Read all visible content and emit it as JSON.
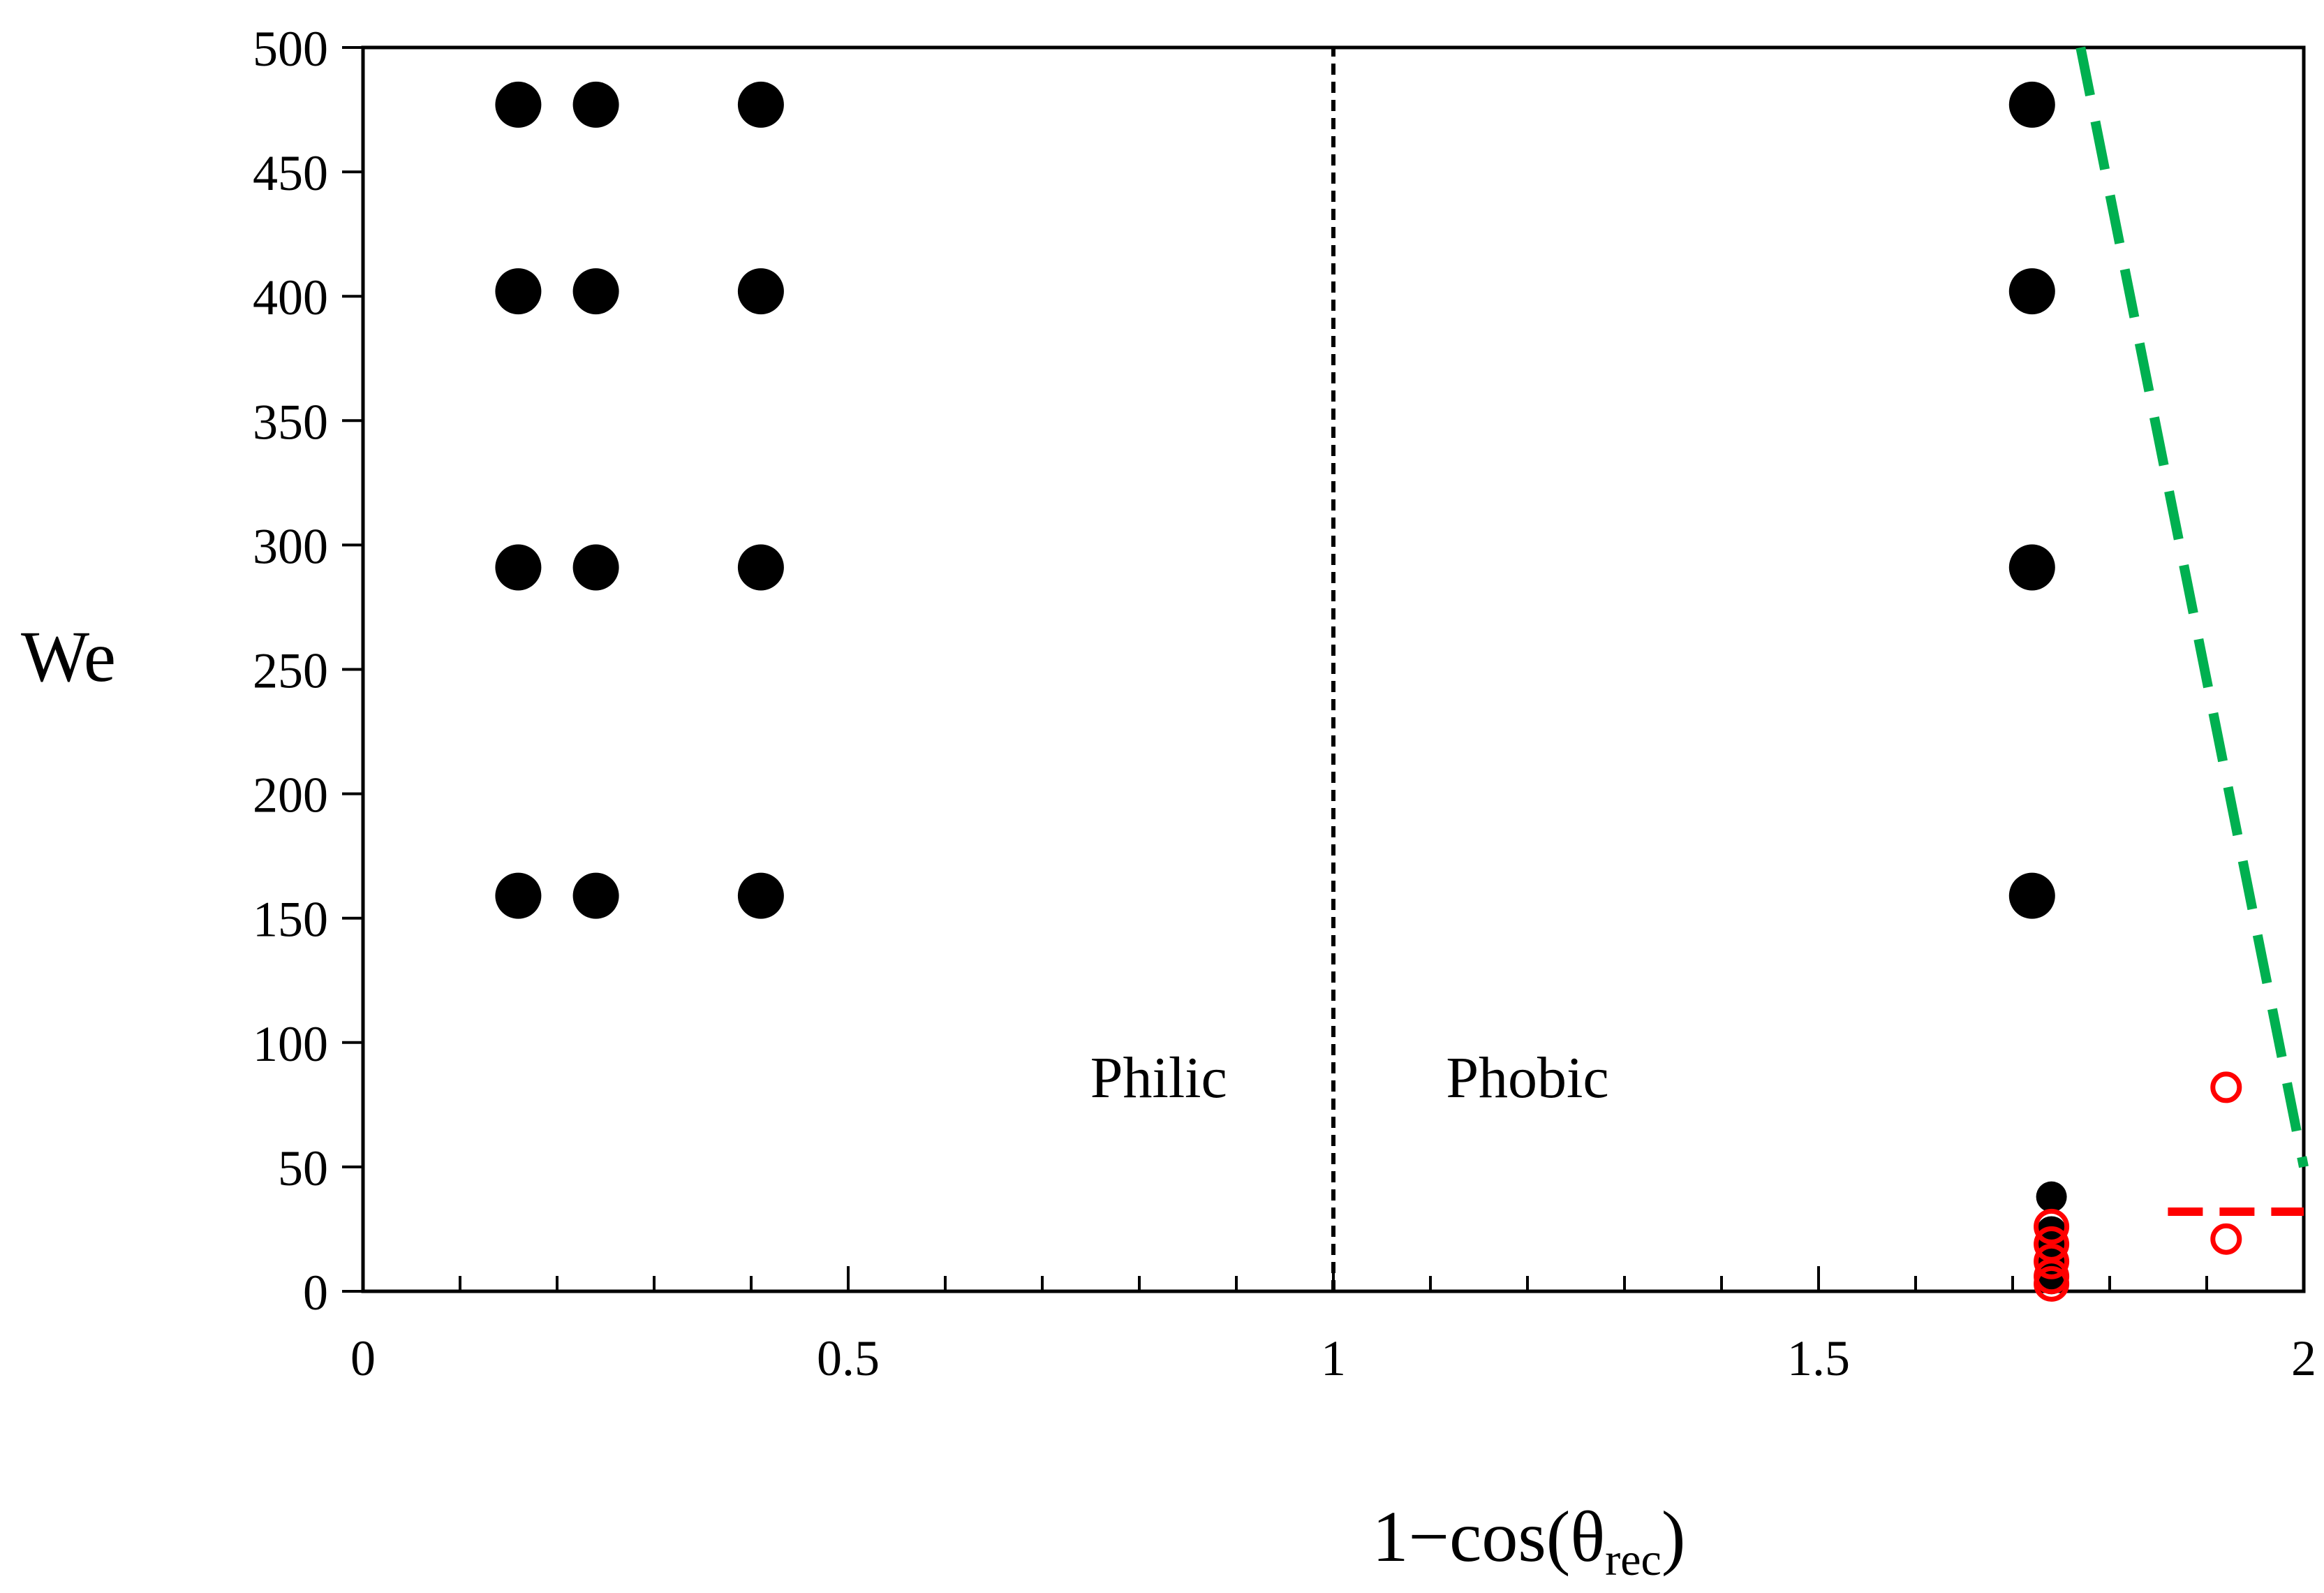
{
  "chart_data": {
    "type": "scatter",
    "title": "",
    "xlabel": {
      "main": "1−cos(θ",
      "sub": "rec",
      "close": ")"
    },
    "ylabel": "We",
    "xlim": [
      0,
      2
    ],
    "ylim": [
      0,
      500
    ],
    "xticks": [
      {
        "value": 0,
        "label": "0"
      },
      {
        "value": 0.5,
        "label": "0.5"
      },
      {
        "value": 1,
        "label": "1"
      },
      {
        "value": 1.5,
        "label": "1.5"
      },
      {
        "value": 2,
        "label": "2"
      }
    ],
    "x_minor_step": 0.1,
    "yticks": [
      {
        "value": 0,
        "label": "0"
      },
      {
        "value": 50,
        "label": "50"
      },
      {
        "value": 100,
        "label": "100"
      },
      {
        "value": 150,
        "label": "150"
      },
      {
        "value": 200,
        "label": "200"
      },
      {
        "value": 250,
        "label": "250"
      },
      {
        "value": 300,
        "label": "300"
      },
      {
        "value": 350,
        "label": "350"
      },
      {
        "value": 400,
        "label": "400"
      },
      {
        "value": 450,
        "label": "450"
      },
      {
        "value": 500,
        "label": "500"
      }
    ],
    "grid": false,
    "legend": "none",
    "series": [
      {
        "marker": "filled-circle",
        "color": "#000000",
        "points": [
          {
            "x": 0.16,
            "y": 477
          },
          {
            "x": 0.24,
            "y": 477
          },
          {
            "x": 0.41,
            "y": 477
          },
          {
            "x": 1.72,
            "y": 477
          },
          {
            "x": 0.16,
            "y": 402
          },
          {
            "x": 0.24,
            "y": 402
          },
          {
            "x": 0.41,
            "y": 402
          },
          {
            "x": 1.72,
            "y": 402
          },
          {
            "x": 0.16,
            "y": 291
          },
          {
            "x": 0.24,
            "y": 291
          },
          {
            "x": 0.41,
            "y": 291
          },
          {
            "x": 1.72,
            "y": 291
          },
          {
            "x": 0.16,
            "y": 159
          },
          {
            "x": 0.24,
            "y": 159
          },
          {
            "x": 0.41,
            "y": 159
          },
          {
            "x": 1.72,
            "y": 159
          },
          {
            "x": 1.74,
            "y": 38
          },
          {
            "x": 1.74,
            "y": 24
          },
          {
            "x": 1.74,
            "y": 17
          },
          {
            "x": 1.74,
            "y": 10
          },
          {
            "x": 1.74,
            "y": 5
          }
        ]
      },
      {
        "marker": "open-circle",
        "color": "#ff0000",
        "points": [
          {
            "x": 1.74,
            "y": 26
          },
          {
            "x": 1.74,
            "y": 19
          },
          {
            "x": 1.74,
            "y": 12
          },
          {
            "x": 1.74,
            "y": 6
          },
          {
            "x": 1.74,
            "y": 3
          },
          {
            "x": 1.92,
            "y": 82
          },
          {
            "x": 1.92,
            "y": 21
          }
        ]
      }
    ],
    "lines": [
      {
        "style": "dashed",
        "color": "#000000",
        "points": [
          [
            1,
            0
          ],
          [
            1,
            500
          ]
        ]
      },
      {
        "style": "dashed",
        "color": "#00b050",
        "points": [
          [
            1.77,
            500
          ],
          [
            2,
            50
          ]
        ]
      },
      {
        "style": "dashed",
        "color": "#ff0000",
        "points": [
          [
            1.86,
            32
          ],
          [
            2,
            32
          ]
        ]
      }
    ],
    "annotations": [
      {
        "text": "Philic",
        "x": 0.82,
        "y": 78
      },
      {
        "text": "Phobic",
        "x": 1.2,
        "y": 78
      }
    ]
  }
}
